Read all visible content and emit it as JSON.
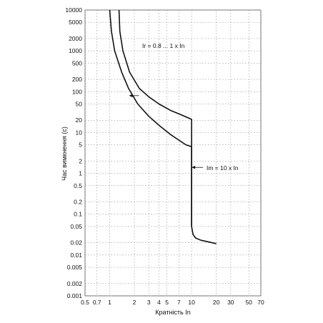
{
  "chart_data": {
    "type": "line",
    "title": "",
    "xlabel": "Кратність In",
    "ylabel": "Час вимкнення (с)",
    "x_scale": "log",
    "y_scale": "log",
    "xlim": [
      0.5,
      70
    ],
    "ylim": [
      0.001,
      10000
    ],
    "grid": true,
    "x_ticks": [
      {
        "value": 0.5,
        "label": "0.5"
      },
      {
        "value": 0.7,
        "label": "0.7"
      },
      {
        "value": 1,
        "label": "1"
      },
      {
        "value": 2,
        "label": "2"
      },
      {
        "value": 3,
        "label": "3"
      },
      {
        "value": 4,
        "label": "4"
      },
      {
        "value": 5,
        "label": "5"
      },
      {
        "value": 7,
        "label": "7"
      },
      {
        "value": 10,
        "label": "10"
      },
      {
        "value": 20,
        "label": "20"
      },
      {
        "value": 30,
        "label": "30"
      },
      {
        "value": 50,
        "label": "50"
      },
      {
        "value": 70,
        "label": "70"
      }
    ],
    "y_ticks": [
      {
        "value": 0.001,
        "label": "0.001"
      },
      {
        "value": 0.002,
        "label": "0.002"
      },
      {
        "value": 0.005,
        "label": "0.005"
      },
      {
        "value": 0.01,
        "label": "0.01"
      },
      {
        "value": 0.02,
        "label": "0.02"
      },
      {
        "value": 0.05,
        "label": "0.05"
      },
      {
        "value": 0.1,
        "label": "0.1"
      },
      {
        "value": 0.2,
        "label": "0.2"
      },
      {
        "value": 0.5,
        "label": "0.5"
      },
      {
        "value": 1,
        "label": "1"
      },
      {
        "value": 2,
        "label": "2"
      },
      {
        "value": 5,
        "label": "5"
      },
      {
        "value": 10,
        "label": "10"
      },
      {
        "value": 20,
        "label": "20"
      },
      {
        "value": 50,
        "label": "50"
      },
      {
        "value": 100,
        "label": "100"
      },
      {
        "value": 200,
        "label": "200"
      },
      {
        "value": 500,
        "label": "500"
      },
      {
        "value": 1000,
        "label": "1000"
      },
      {
        "value": 2000,
        "label": "2000"
      },
      {
        "value": 5000,
        "label": "5000"
      },
      {
        "value": 10000,
        "label": "10000"
      }
    ],
    "series": [
      {
        "points": [
          [
            1.0,
            10000
          ],
          [
            1.05,
            3000
          ],
          [
            1.15,
            1000
          ],
          [
            1.4,
            300
          ],
          [
            1.7,
            120
          ],
          [
            2.2,
            50
          ],
          [
            3,
            25
          ],
          [
            4,
            15
          ],
          [
            5.5,
            9
          ],
          [
            7,
            6.5
          ],
          [
            8.5,
            5
          ],
          [
            10,
            4.5
          ],
          [
            10,
            0.05
          ]
        ]
      },
      {
        "points": [
          [
            1.3,
            10000
          ],
          [
            1.33,
            3000
          ],
          [
            1.45,
            1000
          ],
          [
            1.75,
            300
          ],
          [
            2.3,
            120
          ],
          [
            3,
            75
          ],
          [
            4,
            50
          ],
          [
            5.5,
            35
          ],
          [
            7.5,
            27
          ],
          [
            10,
            21
          ],
          [
            10,
            0.05
          ]
        ]
      },
      {
        "points": [
          [
            10,
            0.05
          ],
          [
            10.4,
            0.032
          ],
          [
            11.2,
            0.026
          ],
          [
            13,
            0.023
          ],
          [
            16,
            0.021
          ],
          [
            20,
            0.019
          ]
        ]
      }
    ],
    "annotations": [
      {
        "text": "Ir = 0.8 ... 1 x In",
        "at": [
          1.72,
          80
        ]
      },
      {
        "text": "Im = 10 x In",
        "at": [
          10,
          1.4
        ]
      }
    ]
  }
}
